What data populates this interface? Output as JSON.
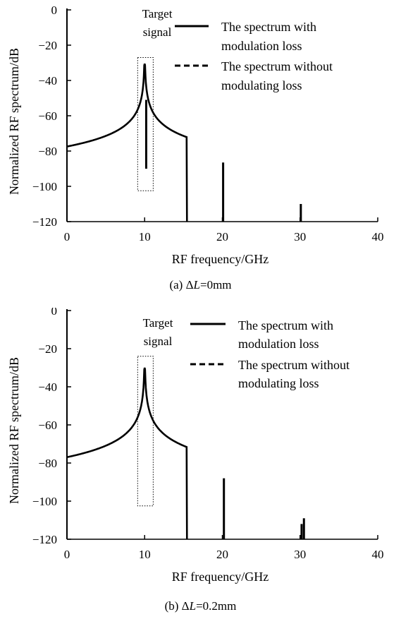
{
  "chart_data": [
    {
      "type": "line",
      "xlabel": "RF frequency/GHz",
      "ylabel": "Normalized RF spectrum/dB",
      "xlim": [
        0,
        40
      ],
      "ylim": [
        -120,
        0
      ],
      "x_ticks": [
        "0",
        "10",
        "20",
        "30",
        "40"
      ],
      "y_ticks": [
        "0",
        "−20",
        "−40",
        "−60",
        "−80",
        "−100",
        "−120"
      ],
      "grid": false,
      "legend_position": "top-right",
      "annotation": [
        "Target",
        "signal"
      ],
      "target_box": {
        "x": [
          9.1,
          11.1
        ],
        "y": [
          -102.5,
          -27
        ]
      },
      "caption": {
        "prefix": "(a) Δ",
        "var": "L",
        "suffix": "=0mm"
      },
      "series": [
        {
          "name_lines": [
            "The spectrum with",
            "modulation loss"
          ],
          "style": "solid",
          "color": "#000000",
          "skirt": {
            "center": 10,
            "peak": -30.5,
            "floor": -119,
            "left_start": 0,
            "right_end": 15.5
          },
          "spikes": [
            {
              "x": 10.2,
              "top": -51,
              "bottom": -90
            },
            {
              "x": 20.1,
              "top": -86.5,
              "bottom": -120
            },
            {
              "x": 30.1,
              "top": -110,
              "bottom": -120
            }
          ]
        },
        {
          "name_lines": [
            "The spectrum without",
            "modulating loss"
          ],
          "style": "dashed",
          "color": "#000000",
          "skirt": null,
          "spikes": []
        }
      ]
    },
    {
      "type": "line",
      "xlabel": "RF frequency/GHz",
      "ylabel": "Normalized RF spectrum/dB",
      "xlim": [
        0,
        40
      ],
      "ylim": [
        -120,
        0
      ],
      "x_ticks": [
        "0",
        "10",
        "20",
        "30",
        "40"
      ],
      "y_ticks": [
        "0",
        "−20",
        "−40",
        "−60",
        "−80",
        "−100",
        "−120"
      ],
      "grid": false,
      "legend_position": "top-right",
      "annotation": [
        "Target",
        "signal"
      ],
      "target_box": {
        "x": [
          9.1,
          11.1
        ],
        "y": [
          -102.5,
          -24
        ]
      },
      "caption": {
        "prefix": "(b) Δ",
        "var": "L",
        "suffix": "=0.2mm"
      },
      "series": [
        {
          "name_lines": [
            "The spectrum with",
            "modulation loss"
          ],
          "style": "solid",
          "color": "#000000",
          "skirt": {
            "center": 10,
            "peak": -30,
            "floor": -119,
            "left_start": 0,
            "right_end": 15.5
          },
          "spikes": [
            {
              "x": 20.2,
              "top": -88,
              "bottom": -120
            },
            {
              "x": 30.2,
              "top": -112,
              "bottom": -120
            },
            {
              "x": 30.5,
              "top": -109,
              "bottom": -120
            }
          ]
        },
        {
          "name_lines": [
            "The spectrum without",
            "modulating loss"
          ],
          "style": "dashed",
          "color": "#000000",
          "skirt": null,
          "spikes": []
        }
      ]
    }
  ]
}
